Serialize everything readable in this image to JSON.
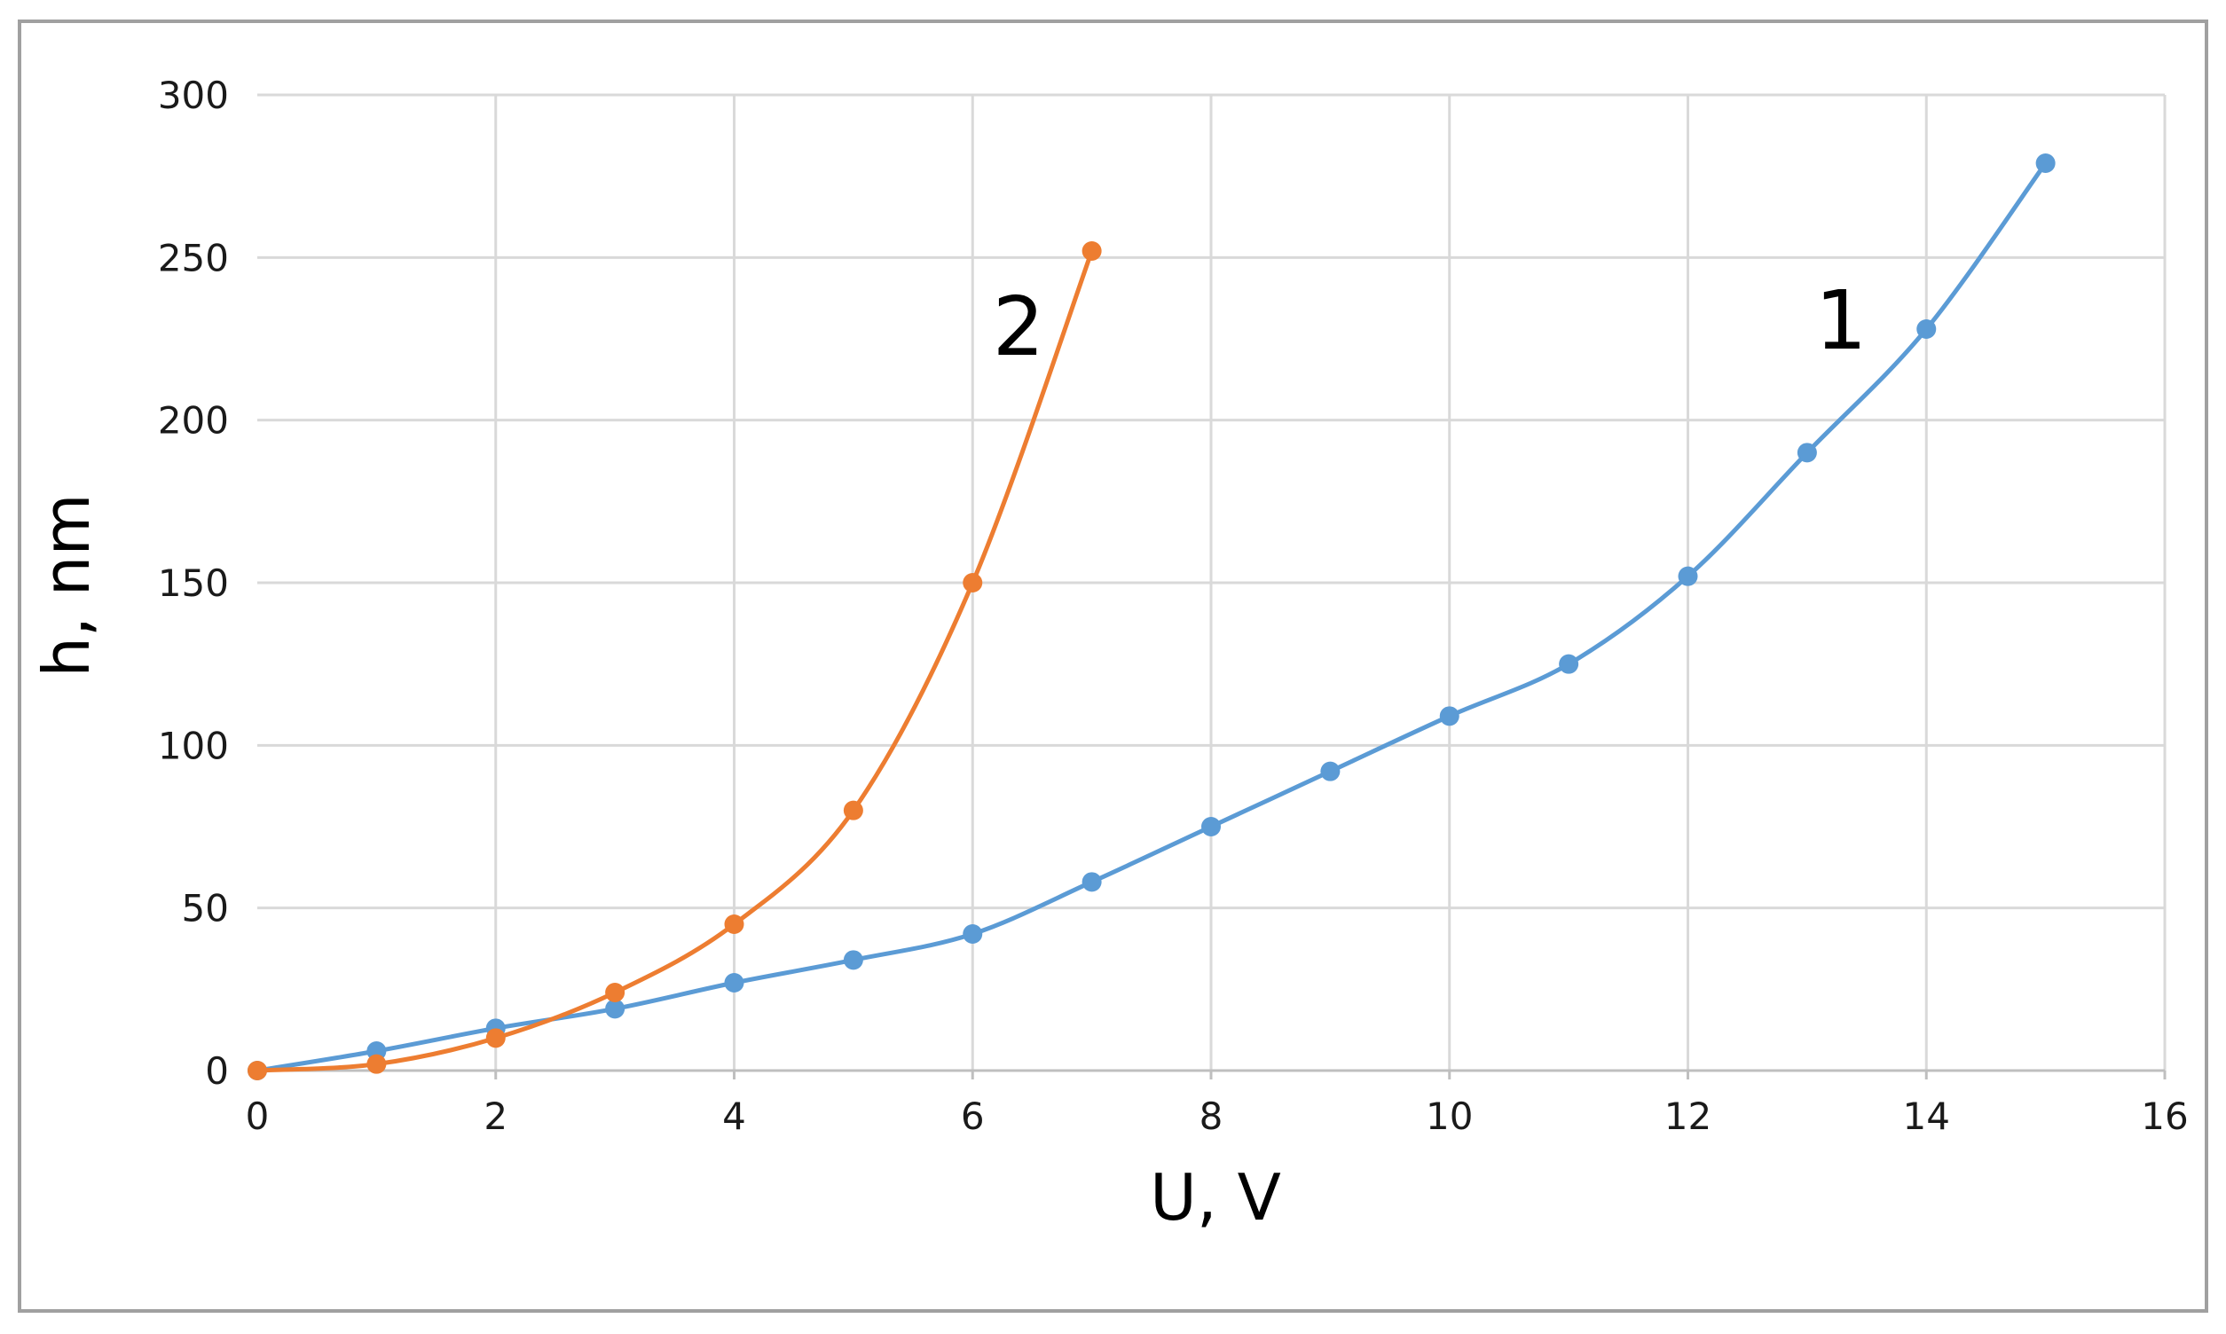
{
  "chart_data": {
    "type": "line",
    "title": "",
    "xlabel": "U, V",
    "ylabel": "h, nm",
    "xlim": [
      0,
      16
    ],
    "ylim": [
      0,
      300
    ],
    "x_ticks": [
      "0",
      "2",
      "4",
      "6",
      "8",
      "10",
      "12",
      "14",
      "16"
    ],
    "y_ticks": [
      "0",
      "50",
      "100",
      "150",
      "200",
      "250",
      "300"
    ],
    "grid": true,
    "legend": "none",
    "series": [
      {
        "label": "1",
        "color": "#5b9bd5",
        "x": [
          0,
          1,
          2,
          3,
          4,
          5,
          6,
          7,
          8,
          9,
          10,
          11,
          12,
          13,
          14,
          15
        ],
        "y": [
          0,
          6,
          13,
          19,
          27,
          34,
          42,
          58,
          75,
          92,
          109,
          125,
          152,
          190,
          228,
          279
        ]
      },
      {
        "label": "2",
        "color": "#ed7d31",
        "x": [
          0,
          1,
          2,
          3,
          4,
          5,
          6,
          7
        ],
        "y": [
          0,
          2,
          10,
          24,
          45,
          80,
          150,
          252
        ]
      }
    ]
  }
}
